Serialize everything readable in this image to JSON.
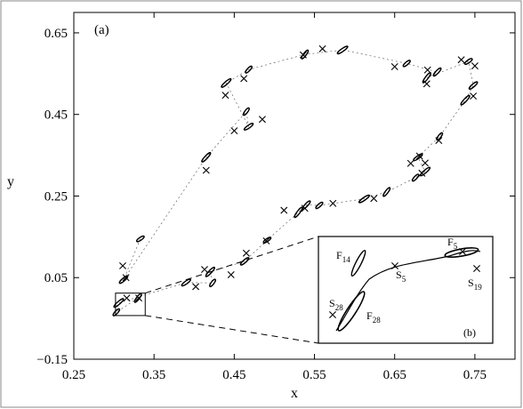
{
  "chart_data": {
    "type": "scatter",
    "title": "",
    "xlabel": "x",
    "ylabel": "y",
    "xlim": [
      0.25,
      0.8
    ],
    "ylim": [
      -0.15,
      0.7
    ],
    "x_ticks": [
      0.25,
      0.35,
      0.45,
      0.55,
      0.65,
      0.75
    ],
    "x_tick_labels": [
      "0.25",
      "0.35",
      "0.45",
      "0.55",
      "0.65",
      "0.75"
    ],
    "y_ticks": [
      -0.15,
      0.05,
      0.25,
      0.45,
      0.65
    ],
    "y_tick_labels": [
      "−0.15",
      "0.05",
      "0.25",
      "0.45",
      "0.65"
    ],
    "grid": false,
    "panel_label": "(a)",
    "series": [
      {
        "marker": "cross",
        "points": [
          [
            0.311,
            0.079
          ],
          [
            0.315,
            0.05
          ],
          [
            0.415,
            0.313
          ],
          [
            0.45,
            0.41
          ],
          [
            0.485,
            0.438
          ],
          [
            0.439,
            0.497
          ],
          [
            0.462,
            0.538
          ],
          [
            0.536,
            0.596
          ],
          [
            0.56,
            0.611
          ],
          [
            0.65,
            0.567
          ],
          [
            0.691,
            0.559
          ],
          [
            0.69,
            0.525
          ],
          [
            0.733,
            0.584
          ],
          [
            0.75,
            0.569
          ],
          [
            0.748,
            0.495
          ],
          [
            0.705,
            0.386
          ],
          [
            0.681,
            0.348
          ],
          [
            0.688,
            0.331
          ],
          [
            0.684,
            0.306
          ],
          [
            0.67,
            0.33
          ],
          [
            0.573,
            0.232
          ],
          [
            0.538,
            0.22
          ],
          [
            0.512,
            0.215
          ],
          [
            0.624,
            0.244
          ],
          [
            0.49,
            0.14
          ],
          [
            0.465,
            0.11
          ],
          [
            0.446,
            0.057
          ],
          [
            0.413,
            0.07
          ],
          [
            0.402,
            0.028
          ],
          [
            0.316,
            0.0
          ],
          [
            0.331,
            0.0
          ]
        ]
      },
      {
        "marker": "ellipse",
        "points": [
          [
            0.333,
            0.145
          ],
          [
            0.312,
            0.045
          ],
          [
            0.415,
            0.345
          ],
          [
            0.465,
            0.457
          ],
          [
            0.468,
            0.42
          ],
          [
            0.44,
            0.527
          ],
          [
            0.468,
            0.56
          ],
          [
            0.538,
            0.597
          ],
          [
            0.585,
            0.608
          ],
          [
            0.665,
            0.575
          ],
          [
            0.703,
            0.554
          ],
          [
            0.69,
            0.54
          ],
          [
            0.742,
            0.58
          ],
          [
            0.748,
            0.521
          ],
          [
            0.738,
            0.485
          ],
          [
            0.706,
            0.396
          ],
          [
            0.679,
            0.345
          ],
          [
            0.688,
            0.31
          ],
          [
            0.676,
            0.295
          ],
          [
            0.64,
            0.26
          ],
          [
            0.612,
            0.243
          ],
          [
            0.556,
            0.227
          ],
          [
            0.54,
            0.228
          ],
          [
            0.53,
            0.21
          ],
          [
            0.491,
            0.142
          ],
          [
            0.463,
            0.09
          ],
          [
            0.42,
            0.064
          ],
          [
            0.423,
            0.037
          ],
          [
            0.39,
            0.038
          ],
          [
            0.306,
            -0.012
          ],
          [
            0.303,
            -0.035
          ],
          [
            0.33,
            0.0
          ]
        ]
      }
    ],
    "zoom_box": {
      "x": [
        0.302,
        0.339
      ],
      "y": [
        -0.043,
        0.012
      ]
    },
    "inset": {
      "label": "(b)",
      "annotations": [
        {
          "base": "F",
          "sub": "14"
        },
        {
          "base": "F",
          "sub": "5"
        },
        {
          "base": "S",
          "sub": "5"
        },
        {
          "base": "S",
          "sub": "19"
        },
        {
          "base": "S",
          "sub": "28"
        },
        {
          "base": "F",
          "sub": "28"
        }
      ]
    }
  }
}
